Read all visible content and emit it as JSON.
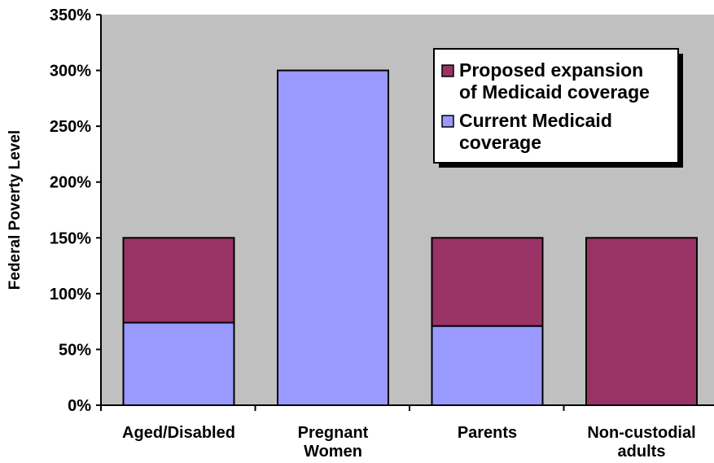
{
  "chart_data": {
    "type": "bar",
    "stacked": true,
    "categories": [
      "Aged/Disabled",
      "Pregnant Women",
      "Parents",
      "Non-custodial adults"
    ],
    "series": [
      {
        "name": "Current Medicaid coverage",
        "color": "#9999ff",
        "values": [
          74,
          300,
          71,
          0
        ]
      },
      {
        "name": "Proposed expansion of Medicaid coverage",
        "color": "#993366",
        "values": [
          76,
          0,
          79,
          150
        ]
      }
    ],
    "title": "",
    "xlabel": "",
    "ylabel": "Federal Poverty Level",
    "ylim": [
      0,
      350
    ],
    "yticks": [
      0,
      50,
      100,
      150,
      200,
      250,
      300,
      350
    ],
    "ytick_labels": [
      "0%",
      "50%",
      "100%",
      "150%",
      "200%",
      "250%",
      "300%",
      "350%"
    ],
    "plot_background": "#c0c0c0",
    "grid": false,
    "legend": {
      "position": "top-right",
      "entries": [
        {
          "series": "Proposed expansion of Medicaid coverage",
          "lines": [
            "Proposed expansion",
            "of Medicaid coverage"
          ],
          "color": "#993366"
        },
        {
          "series": "Current Medicaid coverage",
          "lines": [
            "Current Medicaid",
            "coverage"
          ],
          "color": "#9999ff"
        }
      ]
    }
  }
}
